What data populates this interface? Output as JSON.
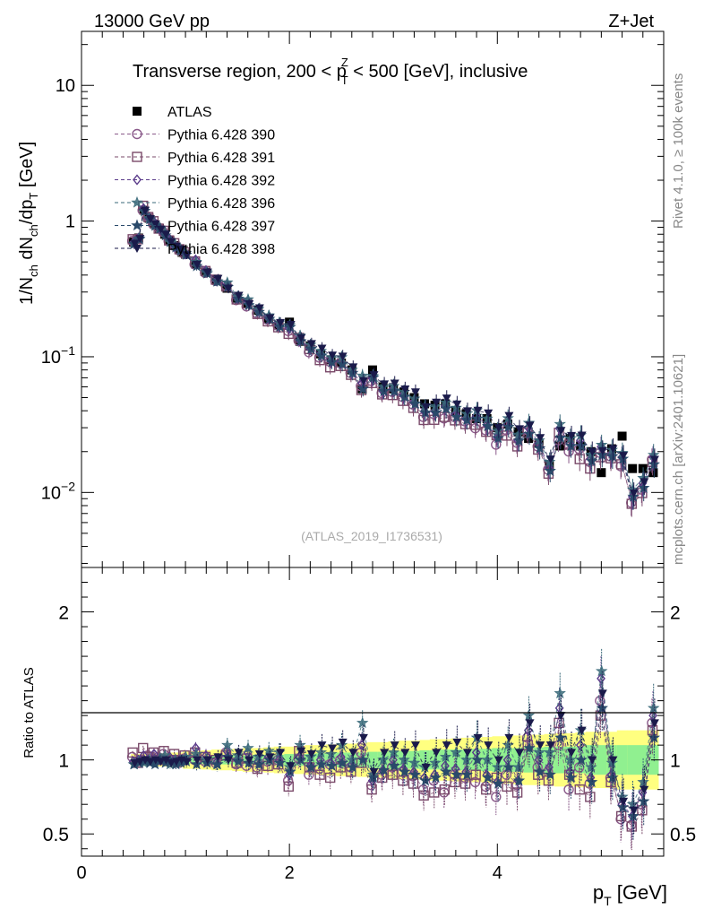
{
  "header": {
    "left": "13000 GeV pp",
    "right": "Z+Jet"
  },
  "side": {
    "rivet": "Rivet 4.1.0, ≥ 100k events",
    "mcplots": "mcplots.cern.ch [arXiv:2401.10621]"
  },
  "chart_data": [
    {
      "type": "scatter",
      "panel": "main",
      "title_parts": [
        "Transverse region, 200 < p",
        "Z",
        "T",
        " < 500 [GeV], inclusive"
      ],
      "ylabel_parts": [
        "1/N",
        "ch",
        " dN",
        "ch",
        "/dp",
        "T",
        " [GeV]"
      ],
      "yscale": "log",
      "ylim": [
        0.0028,
        25
      ],
      "xlim": [
        0,
        5.6
      ],
      "y_ticks": [
        {
          "value": 0.01,
          "base": "10",
          "exp": "−2"
        },
        {
          "value": 0.1,
          "base": "10",
          "exp": "−1"
        },
        {
          "value": 1,
          "base": "1",
          "exp": ""
        },
        {
          "value": 10,
          "base": "10",
          "exp": ""
        }
      ],
      "watermark": "(ATLAS_2019_I1736531)",
      "x": [
        0.5,
        0.55,
        0.6,
        0.65,
        0.7,
        0.75,
        0.8,
        0.85,
        0.9,
        0.95,
        1.0,
        1.1,
        1.2,
        1.3,
        1.4,
        1.5,
        1.6,
        1.7,
        1.8,
        1.9,
        2.0,
        2.1,
        2.2,
        2.3,
        2.4,
        2.5,
        2.6,
        2.7,
        2.8,
        2.9,
        3.0,
        3.1,
        3.2,
        3.3,
        3.4,
        3.5,
        3.6,
        3.7,
        3.8,
        3.9,
        4.0,
        4.1,
        4.2,
        4.3,
        4.4,
        4.5,
        4.6,
        4.7,
        4.8,
        4.9,
        5.0,
        5.1,
        5.2,
        5.3,
        5.4,
        5.5
      ],
      "series": [
        {
          "name": "ATLAS",
          "marker": "square-filled",
          "color": "#000000",
          "values": [
            0.7,
            0.75,
            1.2,
            1.05,
            0.95,
            0.88,
            0.8,
            0.72,
            0.66,
            0.62,
            0.57,
            0.48,
            0.42,
            0.37,
            0.32,
            0.27,
            0.245,
            0.22,
            0.19,
            0.17,
            0.18,
            0.13,
            0.12,
            0.105,
            0.095,
            0.09,
            0.08,
            0.058,
            0.08,
            0.06,
            0.058,
            0.055,
            0.05,
            0.045,
            0.044,
            0.045,
            0.04,
            0.038,
            0.035,
            0.035,
            0.03,
            0.032,
            0.028,
            0.025,
            0.023,
            0.016,
            0.022,
            0.025,
            0.022,
            0.02,
            0.014,
            0.021,
            0.026,
            0.015,
            0.015,
            0.014
          ]
        },
        {
          "name": "Pythia 6.428 390",
          "marker": "circle-open",
          "color": "#8a5a8a",
          "ratio": [
            1.02,
            0.98,
            1.0,
            1.03,
            1.0,
            1.02,
            1.04,
            0.99,
            1.0,
            0.98,
            1.01,
            1.0,
            0.99,
            0.98,
            1.05,
            0.97,
            0.96,
            0.95,
            0.99,
            1.0,
            0.86,
            1.01,
            0.9,
            0.94,
            0.97,
            1.0,
            0.95,
            1.05,
            0.83,
            0.9,
            0.95,
            0.92,
            0.89,
            0.8,
            0.86,
            0.78,
            0.9,
            0.88,
            0.85,
            0.82,
            0.75,
            0.9,
            0.83,
            1.15,
            0.95,
            0.92,
            1.1,
            0.8,
            0.95,
            0.84,
            1.4,
            0.88,
            0.6,
            0.56,
            0.7,
            1.25
          ]
        },
        {
          "name": "Pythia 6.428 391",
          "marker": "square-open",
          "color": "#7a4a6a",
          "ratio": [
            1.05,
            0.98,
            1.08,
            1.02,
            1.05,
            1.0,
            1.06,
            1.0,
            1.04,
            1.0,
            1.03,
            1.05,
            1.02,
            1.0,
            1.03,
            0.98,
            1.01,
            0.94,
            0.96,
            0.97,
            0.82,
            1.06,
            0.95,
            0.9,
            0.88,
            0.95,
            0.92,
            0.98,
            0.8,
            0.88,
            0.9,
            0.86,
            0.84,
            0.76,
            0.78,
            0.8,
            0.85,
            0.84,
            0.9,
            0.8,
            0.88,
            0.82,
            0.78,
            1.1,
            0.9,
            0.86,
            1.25,
            0.9,
            0.8,
            0.75,
            1.3,
            0.85,
            0.62,
            0.55,
            0.66,
            1.2
          ]
        },
        {
          "name": "Pythia 6.428 392",
          "marker": "diamond-open",
          "color": "#5a3a8a",
          "ratio": [
            0.99,
            1.0,
            1.03,
            1.0,
            1.04,
            1.0,
            1.0,
            1.02,
            0.98,
            1.0,
            1.0,
            1.08,
            1.03,
            0.98,
            1.06,
            1.0,
            1.05,
            0.99,
            1.02,
            1.0,
            0.9,
            1.02,
            0.96,
            1.0,
            0.98,
            1.02,
            0.97,
            1.1,
            0.86,
            0.93,
            1.0,
            0.94,
            0.92,
            0.88,
            0.9,
            0.96,
            0.94,
            0.92,
            1.05,
            0.9,
            0.85,
            1.0,
            0.86,
            1.2,
            1.0,
            0.95,
            1.35,
            0.92,
            1.1,
            0.88,
            1.55,
            0.9,
            0.7,
            0.62,
            0.78,
            1.3
          ]
        },
        {
          "name": "Pythia 6.428 396",
          "marker": "star",
          "color": "#3a6a7a",
          "ratio": [
            0.97,
            0.99,
            0.98,
            1.0,
            0.99,
            1.01,
            1.03,
            0.97,
            1.0,
            0.99,
            1.02,
            1.04,
            1.0,
            0.97,
            1.1,
            1.03,
            1.08,
            1.02,
            1.06,
            1.05,
            0.95,
            1.1,
            1.02,
            1.05,
            1.04,
            1.1,
            1.0,
            1.25,
            0.9,
            1.0,
            1.05,
            1.0,
            0.98,
            0.95,
            0.98,
            1.02,
            1.05,
            1.0,
            1.15,
            1.0,
            0.95,
            1.1,
            0.95,
            1.3,
            1.05,
            1.05,
            1.45,
            1.0,
            1.2,
            0.95,
            1.6,
            0.98,
            0.75,
            0.7,
            0.85,
            1.35
          ]
        },
        {
          "name": "Pythia 6.428 397",
          "marker": "star-filled",
          "color": "#2a4a6a",
          "ratio": [
            0.97,
            0.98,
            0.99,
            0.98,
            0.97,
            1.0,
            0.98,
            0.99,
            0.97,
            0.98,
            0.99,
            0.97,
            0.98,
            0.97,
            1.02,
            0.99,
            0.98,
            0.97,
            1.0,
            0.98,
            0.92,
            1.0,
            0.95,
            0.97,
            0.96,
            0.98,
            0.95,
            1.0,
            0.88,
            0.93,
            0.96,
            0.92,
            0.9,
            0.86,
            0.88,
            0.92,
            0.9,
            0.9,
            1.0,
            0.88,
            0.84,
            0.95,
            0.86,
            1.08,
            0.92,
            0.9,
            1.15,
            0.88,
            1.0,
            0.85,
            1.35,
            0.88,
            0.68,
            0.62,
            0.72,
            1.15
          ]
        },
        {
          "name": "Pythia 6.428 398",
          "marker": "triangle-down-filled",
          "color": "#1a1a4a",
          "ratio": [
            0.98,
            0.99,
            1.0,
            0.99,
            1.0,
            0.99,
            1.0,
            0.98,
            0.99,
            1.0,
            0.99,
            1.0,
            1.0,
            1.02,
            1.0,
            1.05,
            1.0,
            1.04,
            1.02,
            1.05,
            0.96,
            1.06,
            1.04,
            1.1,
            1.08,
            1.12,
            1.05,
            1.15,
            0.92,
            1.05,
            1.1,
            1.05,
            1.1,
            0.95,
            1.05,
            1.1,
            1.12,
            1.05,
            1.15,
            1.1,
            1.0,
            1.15,
            1.05,
            1.25,
            1.1,
            1.1,
            1.3,
            1.05,
            1.2,
            1.0,
            1.45,
            1.0,
            0.72,
            0.66,
            0.8,
            1.25
          ]
        }
      ]
    },
    {
      "type": "scatter",
      "panel": "ratio",
      "ylabel": "Ratio to ATLAS",
      "xlabel_parts": [
        "p",
        "T",
        " [GeV]"
      ],
      "xlim": [
        0,
        5.6
      ],
      "ylim": [
        0.35,
        2.3
      ],
      "x_ticks": [
        "0",
        "2",
        "4"
      ],
      "y_ticks": [
        "0.5",
        "1",
        "2"
      ],
      "band_stat_halfwidth": [
        0.02,
        0.02,
        0.02,
        0.02,
        0.02,
        0.02,
        0.02,
        0.02,
        0.02,
        0.02,
        0.025,
        0.025,
        0.025,
        0.03,
        0.03,
        0.03,
        0.03,
        0.035,
        0.035,
        0.035,
        0.04,
        0.04,
        0.04,
        0.045,
        0.045,
        0.05,
        0.05,
        0.05,
        0.055,
        0.055,
        0.06,
        0.06,
        0.06,
        0.065,
        0.065,
        0.07,
        0.07,
        0.07,
        0.075,
        0.075,
        0.08,
        0.08,
        0.08,
        0.085,
        0.085,
        0.09,
        0.09,
        0.09,
        0.09,
        0.1,
        0.1,
        0.1,
        0.1,
        0.1,
        0.1,
        0.1
      ],
      "band_total_halfwidth": [
        0.04,
        0.04,
        0.04,
        0.04,
        0.04,
        0.045,
        0.045,
        0.05,
        0.05,
        0.05,
        0.06,
        0.06,
        0.065,
        0.07,
        0.07,
        0.075,
        0.08,
        0.08,
        0.085,
        0.09,
        0.09,
        0.095,
        0.1,
        0.1,
        0.105,
        0.11,
        0.11,
        0.115,
        0.12,
        0.12,
        0.125,
        0.13,
        0.13,
        0.135,
        0.14,
        0.14,
        0.145,
        0.15,
        0.15,
        0.155,
        0.16,
        0.16,
        0.165,
        0.17,
        0.17,
        0.175,
        0.18,
        0.18,
        0.185,
        0.19,
        0.19,
        0.19,
        0.2,
        0.2,
        0.2,
        0.2
      ]
    }
  ]
}
